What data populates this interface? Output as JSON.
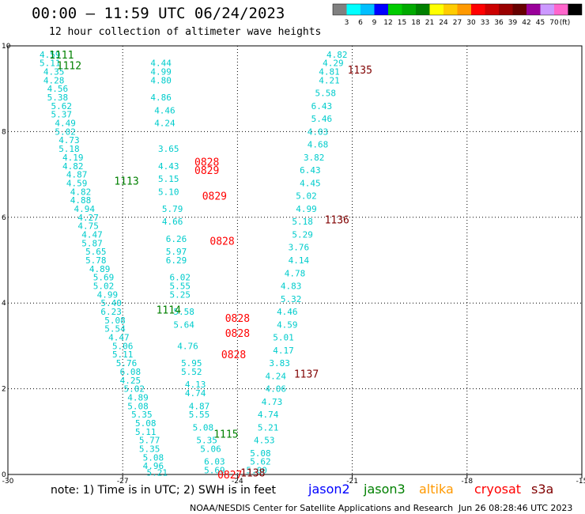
{
  "header": {
    "title": "00:00 – 11:59 UTC 06/24/2023",
    "subtitle": "12 hour collection of altimeter wave heights"
  },
  "legend": {
    "colors": [
      "#808080",
      "#00ffff",
      "#00bfff",
      "#0000ff",
      "#00cc00",
      "#00aa00",
      "#008000",
      "#ffff00",
      "#ffcc00",
      "#ff9900",
      "#ff0000",
      "#cc0000",
      "#990000",
      "#660000",
      "#990099",
      "#cc99ff",
      "#ff66cc",
      "#000000"
    ],
    "labels": [
      "3",
      "6",
      "9",
      "12",
      "15",
      "18",
      "21",
      "24",
      "27",
      "30",
      "33",
      "36",
      "39",
      "42",
      "45",
      "70",
      "(ft)"
    ]
  },
  "axes": {
    "x_ticks": [
      "-30",
      "-27",
      "-24",
      "-21",
      "-18",
      "-15"
    ],
    "y_ticks": [
      "0",
      "2",
      "4",
      "6",
      "8",
      "10"
    ]
  },
  "chart_data": {
    "type": "scatter",
    "xlim": [
      -30,
      -15
    ],
    "ylim": [
      0,
      10
    ],
    "grid": true,
    "value_colors": {
      "swh": "#00cccc"
    },
    "track_a_swh": [
      {
        "x": -28.9,
        "y": 9.8,
        "v": "4.59"
      },
      {
        "x": -28.9,
        "y": 9.6,
        "v": "5.11"
      },
      {
        "x": -28.8,
        "y": 9.4,
        "v": "4.35"
      },
      {
        "x": -28.8,
        "y": 9.2,
        "v": "4.28"
      },
      {
        "x": -28.7,
        "y": 9.0,
        "v": "4.56"
      },
      {
        "x": -28.7,
        "y": 8.8,
        "v": "5.38"
      },
      {
        "x": -28.6,
        "y": 8.6,
        "v": "5.62"
      },
      {
        "x": -28.6,
        "y": 8.4,
        "v": "5.37"
      },
      {
        "x": -28.5,
        "y": 8.2,
        "v": "4.49"
      },
      {
        "x": -28.5,
        "y": 8.0,
        "v": "5.02"
      },
      {
        "x": -28.4,
        "y": 7.8,
        "v": "4.73"
      },
      {
        "x": -28.4,
        "y": 7.6,
        "v": "5.18"
      },
      {
        "x": -28.3,
        "y": 7.4,
        "v": "4.19"
      },
      {
        "x": -28.3,
        "y": 7.2,
        "v": "4.82"
      },
      {
        "x": -28.2,
        "y": 7.0,
        "v": "4.87"
      },
      {
        "x": -28.2,
        "y": 6.8,
        "v": "4.59"
      },
      {
        "x": -28.1,
        "y": 6.6,
        "v": "4.82"
      },
      {
        "x": -28.1,
        "y": 6.4,
        "v": "4.88"
      },
      {
        "x": -28.0,
        "y": 6.2,
        "v": "4.94"
      },
      {
        "x": -27.9,
        "y": 6.0,
        "v": "4.27"
      },
      {
        "x": -27.9,
        "y": 5.8,
        "v": "4.75"
      },
      {
        "x": -27.8,
        "y": 5.6,
        "v": "4.47"
      },
      {
        "x": -27.8,
        "y": 5.4,
        "v": "5.87"
      },
      {
        "x": -27.7,
        "y": 5.2,
        "v": "5.65"
      },
      {
        "x": -27.7,
        "y": 5.0,
        "v": "5.78"
      },
      {
        "x": -27.6,
        "y": 4.8,
        "v": "4.89"
      },
      {
        "x": -27.5,
        "y": 4.6,
        "v": "5.69"
      },
      {
        "x": -27.5,
        "y": 4.4,
        "v": "5.02"
      },
      {
        "x": -27.4,
        "y": 4.2,
        "v": "4.99"
      },
      {
        "x": -27.3,
        "y": 4.0,
        "v": "5.40"
      },
      {
        "x": -27.3,
        "y": 3.8,
        "v": "6.23"
      },
      {
        "x": -27.2,
        "y": 3.6,
        "v": "5.08"
      },
      {
        "x": -27.2,
        "y": 3.4,
        "v": "5.54"
      },
      {
        "x": -27.1,
        "y": 3.2,
        "v": "4.47"
      },
      {
        "x": -27.0,
        "y": 3.0,
        "v": "5.06"
      },
      {
        "x": -27.0,
        "y": 2.8,
        "v": "5.11"
      },
      {
        "x": -26.9,
        "y": 2.6,
        "v": "5.76"
      },
      {
        "x": -26.8,
        "y": 2.4,
        "v": "6.08"
      },
      {
        "x": -26.8,
        "y": 2.2,
        "v": "4.25"
      },
      {
        "x": -26.7,
        "y": 2.0,
        "v": "5.02"
      },
      {
        "x": -26.6,
        "y": 1.8,
        "v": "4.89"
      },
      {
        "x": -26.6,
        "y": 1.6,
        "v": "5.08"
      },
      {
        "x": -26.5,
        "y": 1.4,
        "v": "5.35"
      },
      {
        "x": -26.4,
        "y": 1.2,
        "v": "5.08"
      },
      {
        "x": -26.4,
        "y": 1.0,
        "v": "5.11"
      },
      {
        "x": -26.3,
        "y": 0.8,
        "v": "5.77"
      },
      {
        "x": -26.3,
        "y": 0.6,
        "v": "5.35"
      },
      {
        "x": -26.2,
        "y": 0.4,
        "v": "5.08"
      },
      {
        "x": -26.2,
        "y": 0.2,
        "v": "4.96"
      },
      {
        "x": -26.1,
        "y": 0.05,
        "v": "5.21"
      }
    ],
    "track_b_swh": [
      {
        "x": -26.0,
        "y": 9.6,
        "v": "4.44"
      },
      {
        "x": -26.0,
        "y": 9.4,
        "v": "4.99"
      },
      {
        "x": -26.0,
        "y": 9.2,
        "v": "4.80"
      },
      {
        "x": -26.0,
        "y": 8.8,
        "v": "4.86"
      },
      {
        "x": -25.9,
        "y": 8.5,
        "v": "4.46"
      },
      {
        "x": -25.9,
        "y": 8.2,
        "v": "4.24"
      },
      {
        "x": -25.8,
        "y": 7.6,
        "v": "3.65"
      },
      {
        "x": -25.8,
        "y": 7.2,
        "v": "4.43"
      },
      {
        "x": -25.8,
        "y": 6.9,
        "v": "5.15"
      },
      {
        "x": -25.8,
        "y": 6.6,
        "v": "5.10"
      },
      {
        "x": -25.7,
        "y": 6.2,
        "v": "5.79"
      },
      {
        "x": -25.7,
        "y": 5.9,
        "v": "4.66"
      },
      {
        "x": -25.6,
        "y": 5.5,
        "v": "6.26"
      },
      {
        "x": -25.6,
        "y": 5.2,
        "v": "5.97"
      },
      {
        "x": -25.6,
        "y": 5.0,
        "v": "6.29"
      },
      {
        "x": -25.5,
        "y": 4.6,
        "v": "6.02"
      },
      {
        "x": -25.5,
        "y": 4.4,
        "v": "5.55"
      },
      {
        "x": -25.5,
        "y": 4.2,
        "v": "5.25"
      },
      {
        "x": -25.4,
        "y": 3.8,
        "v": "5.58"
      },
      {
        "x": -25.4,
        "y": 3.5,
        "v": "5.64"
      },
      {
        "x": -25.3,
        "y": 3.0,
        "v": "4.76"
      },
      {
        "x": -25.2,
        "y": 2.6,
        "v": "5.95"
      },
      {
        "x": -25.2,
        "y": 2.4,
        "v": "5.52"
      },
      {
        "x": -25.1,
        "y": 2.1,
        "v": "4.13"
      },
      {
        "x": -25.1,
        "y": 1.9,
        "v": "4.74"
      },
      {
        "x": -25.0,
        "y": 1.6,
        "v": "4.87"
      },
      {
        "x": -25.0,
        "y": 1.4,
        "v": "5.55"
      },
      {
        "x": -24.9,
        "y": 1.1,
        "v": "5.08"
      },
      {
        "x": -24.8,
        "y": 0.8,
        "v": "5.35"
      },
      {
        "x": -24.7,
        "y": 0.6,
        "v": "5.06"
      },
      {
        "x": -24.6,
        "y": 0.3,
        "v": "6.03"
      },
      {
        "x": -24.6,
        "y": 0.1,
        "v": "5.69"
      }
    ],
    "track_c_swh": [
      {
        "x": -21.4,
        "y": 9.8,
        "v": "4.82"
      },
      {
        "x": -21.5,
        "y": 9.6,
        "v": "4.29"
      },
      {
        "x": -21.6,
        "y": 9.4,
        "v": "4.81"
      },
      {
        "x": -21.6,
        "y": 9.2,
        "v": "4.21"
      },
      {
        "x": -21.7,
        "y": 8.9,
        "v": "5.58"
      },
      {
        "x": -21.8,
        "y": 8.6,
        "v": "6.43"
      },
      {
        "x": -21.8,
        "y": 8.3,
        "v": "5.46"
      },
      {
        "x": -21.9,
        "y": 8.0,
        "v": "4.03"
      },
      {
        "x": -21.9,
        "y": 7.7,
        "v": "4.68"
      },
      {
        "x": -22.0,
        "y": 7.4,
        "v": "3.82"
      },
      {
        "x": -22.1,
        "y": 7.1,
        "v": "6.43"
      },
      {
        "x": -22.1,
        "y": 6.8,
        "v": "4.45"
      },
      {
        "x": -22.2,
        "y": 6.5,
        "v": "5.02"
      },
      {
        "x": -22.2,
        "y": 6.2,
        "v": "4.99"
      },
      {
        "x": -22.3,
        "y": 5.9,
        "v": "5.18"
      },
      {
        "x": -22.3,
        "y": 5.6,
        "v": "5.29"
      },
      {
        "x": -22.4,
        "y": 5.3,
        "v": "3.76"
      },
      {
        "x": -22.4,
        "y": 5.0,
        "v": "4.14"
      },
      {
        "x": -22.5,
        "y": 4.7,
        "v": "4.78"
      },
      {
        "x": -22.6,
        "y": 4.4,
        "v": "4.83"
      },
      {
        "x": -22.6,
        "y": 4.1,
        "v": "5.32"
      },
      {
        "x": -22.7,
        "y": 3.8,
        "v": "4.46"
      },
      {
        "x": -22.7,
        "y": 3.5,
        "v": "4.59"
      },
      {
        "x": -22.8,
        "y": 3.2,
        "v": "5.01"
      },
      {
        "x": -22.8,
        "y": 2.9,
        "v": "4.17"
      },
      {
        "x": -22.9,
        "y": 2.6,
        "v": "3.83"
      },
      {
        "x": -23.0,
        "y": 2.3,
        "v": "4.24"
      },
      {
        "x": -23.0,
        "y": 2.0,
        "v": "4.06"
      },
      {
        "x": -23.1,
        "y": 1.7,
        "v": "4.73"
      },
      {
        "x": -23.2,
        "y": 1.4,
        "v": "4.74"
      },
      {
        "x": -23.2,
        "y": 1.1,
        "v": "5.21"
      },
      {
        "x": -23.3,
        "y": 0.8,
        "v": "4.53"
      },
      {
        "x": -23.4,
        "y": 0.5,
        "v": "5.08"
      },
      {
        "x": -23.4,
        "y": 0.3,
        "v": "5.62"
      },
      {
        "x": -23.5,
        "y": 0.1,
        "v": "5.00"
      }
    ],
    "time_labels": [
      {
        "x": -28.6,
        "y": 9.8,
        "v": "1111",
        "color": "#008000"
      },
      {
        "x": -28.4,
        "y": 9.55,
        "v": "1112",
        "color": "#008000"
      },
      {
        "x": -26.9,
        "y": 6.85,
        "v": "1113",
        "color": "#008000"
      },
      {
        "x": -25.8,
        "y": 3.85,
        "v": "1114",
        "color": "#008000"
      },
      {
        "x": -24.3,
        "y": 0.95,
        "v": "1115",
        "color": "#008000"
      },
      {
        "x": -20.8,
        "y": 9.45,
        "v": "1135",
        "color": "#800000"
      },
      {
        "x": -21.4,
        "y": 5.95,
        "v": "1136",
        "color": "#800000"
      },
      {
        "x": -22.2,
        "y": 2.35,
        "v": "1137",
        "color": "#800000"
      },
      {
        "x": -23.6,
        "y": 0.05,
        "v": "1138",
        "color": "#800000"
      },
      {
        "x": -24.8,
        "y": 7.3,
        "v": "0828",
        "color": "#ff0000"
      },
      {
        "x": -24.8,
        "y": 7.1,
        "v": "0829",
        "color": "#ff0000"
      },
      {
        "x": -24.6,
        "y": 6.5,
        "v": "0829",
        "color": "#ff0000"
      },
      {
        "x": -24.4,
        "y": 5.45,
        "v": "0828",
        "color": "#ff0000"
      },
      {
        "x": -24.0,
        "y": 3.65,
        "v": "0828",
        "color": "#ff0000"
      },
      {
        "x": -24.0,
        "y": 3.3,
        "v": "0828",
        "color": "#ff0000"
      },
      {
        "x": -24.1,
        "y": 2.8,
        "v": "0828",
        "color": "#ff0000"
      },
      {
        "x": -24.2,
        "y": 0.0,
        "v": "0827",
        "color": "#ff0000"
      }
    ]
  },
  "footer": {
    "note": "note: 1) Time is in UTC; 2) SWH is in feet",
    "satellites": [
      {
        "name": "jason2",
        "color": "#0000ff"
      },
      {
        "name": "jason3",
        "color": "#008000"
      },
      {
        "name": "altika",
        "color": "#ff9900"
      },
      {
        "name": "cryosat",
        "color": "#ff0000"
      },
      {
        "name": "s3a",
        "color": "#800000"
      }
    ],
    "credit": "NOAA/NESDIS Center for Satellite Applications and Research",
    "timestamp": "Jun 26 08:28:46 UTC 2023"
  }
}
